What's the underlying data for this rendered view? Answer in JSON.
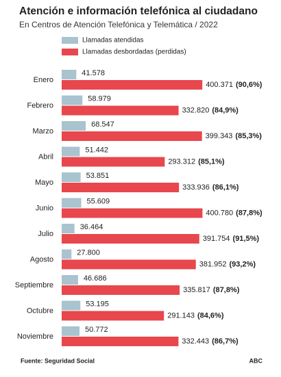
{
  "chart_data": {
    "type": "bar",
    "orientation": "horizontal",
    "title": "Atención e información telefónica al ciudadano",
    "subtitle": "En Centros de Atención Telefónica y Telemática / 2022",
    "categories": [
      "Enero",
      "Febrero",
      "Marzo",
      "Abril",
      "Mayo",
      "Junio",
      "Julio",
      "Agosto",
      "Septiembre",
      "Octubre",
      "Noviembre"
    ],
    "series": [
      {
        "name": "Llamadas atendidas",
        "color": "#a9c3cf",
        "values": [
          41578,
          58979,
          68547,
          51442,
          53851,
          55609,
          36464,
          27800,
          46686,
          53195,
          50772
        ],
        "value_labels": [
          "41.578",
          "58.979",
          "68.547",
          "51.442",
          "53.851",
          "55.609",
          "36.464",
          "27.800",
          "46.686",
          "53.195",
          "50.772"
        ]
      },
      {
        "name": "Llamadas desbordadas (perdidas)",
        "color": "#e7474d",
        "values": [
          400371,
          332820,
          399343,
          293312,
          333936,
          400780,
          391754,
          381952,
          335817,
          291143,
          332443
        ],
        "value_labels": [
          "400.371",
          "332.820",
          "399.343",
          "293.312",
          "333.936",
          "400.780",
          "391.754",
          "381.952",
          "335.817",
          "291.143",
          "332.443"
        ],
        "share_labels": [
          "(90,6%)",
          "(84,9%)",
          "(85,3%)",
          "(85,1%)",
          "(86,1%)",
          "(87,8%)",
          "(91,5%)",
          "(93,2%)",
          "(87,8%)",
          "(84,6%)",
          "(86,7%)"
        ]
      }
    ],
    "xlim": [
      0,
      400000
    ],
    "source": "Fuente: Seguridad Social",
    "brand": "ABC"
  }
}
